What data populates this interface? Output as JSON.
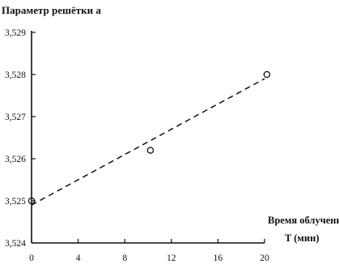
{
  "chart_data": {
    "type": "scatter",
    "ylabel": "Параметр решётки a",
    "xlabel_line1": "Время облучения",
    "xlabel_line2": "T (мин)",
    "xlim": [
      0,
      20
    ],
    "ylim": [
      3.524,
      3.529
    ],
    "x_ticks": [
      0,
      4,
      8,
      12,
      16,
      20
    ],
    "y_ticks": [
      3.524,
      3.525,
      3.526,
      3.527,
      3.528,
      3.529
    ],
    "x_tick_labels": [
      "0",
      "4",
      "8",
      "12",
      "16",
      "20"
    ],
    "y_tick_labels": [
      "3,524",
      "3,525",
      "3,526",
      "3,527",
      "3,528",
      "3,529"
    ],
    "points": [
      {
        "x": 0,
        "y": 3.525
      },
      {
        "x": 10.2,
        "y": 3.5262
      },
      {
        "x": 20.2,
        "y": 3.528
      }
    ],
    "fit_line": {
      "style": "dashed",
      "x": [
        0,
        20
      ],
      "y": [
        3.5249,
        3.5279
      ]
    },
    "grid": false,
    "legend": "none"
  }
}
